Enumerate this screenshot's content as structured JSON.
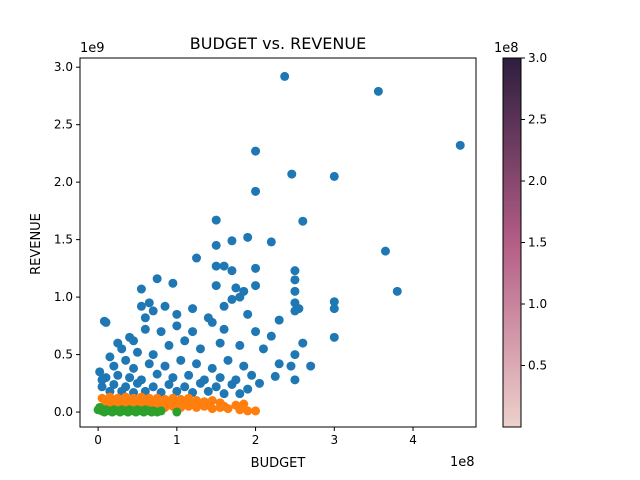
{
  "chart_data": {
    "type": "scatter",
    "title": "BUDGET vs. REVENUE",
    "xlabel": "BUDGET",
    "ylabel": "REVENUE",
    "x_scale_label": "1e8",
    "y_scale_label": "1e9",
    "x_unit": 100000000,
    "y_unit": 1000000000,
    "xlim": [
      -0.23,
      4.8
    ],
    "ylim": [
      -0.13,
      3.08
    ],
    "x_ticks": [
      0,
      1,
      2,
      3,
      4
    ],
    "y_ticks": [
      0.0,
      0.5,
      1.0,
      1.5,
      2.0,
      2.5,
      3.0
    ],
    "x_tick_labels": [
      "0",
      "1",
      "2",
      "3",
      "4"
    ],
    "y_tick_labels": [
      "0.0",
      "0.5",
      "1.0",
      "1.5",
      "2.0",
      "2.5",
      "3.0"
    ],
    "grid": false,
    "series": [
      {
        "color": "#1f77b4",
        "points": [
          [
            2.37,
            2.92
          ],
          [
            3.56,
            2.79
          ],
          [
            4.6,
            2.32
          ],
          [
            2.0,
            2.27
          ],
          [
            2.46,
            2.07
          ],
          [
            3.0,
            2.05
          ],
          [
            2.0,
            1.92
          ],
          [
            1.5,
            1.67
          ],
          [
            2.6,
            1.66
          ],
          [
            1.7,
            1.49
          ],
          [
            1.9,
            1.52
          ],
          [
            2.2,
            1.48
          ],
          [
            1.5,
            1.45
          ],
          [
            3.65,
            1.4
          ],
          [
            1.25,
            1.34
          ],
          [
            1.5,
            1.27
          ],
          [
            1.6,
            1.27
          ],
          [
            1.7,
            1.23
          ],
          [
            2.0,
            1.25
          ],
          [
            2.5,
            1.23
          ],
          [
            0.75,
            1.16
          ],
          [
            0.95,
            1.12
          ],
          [
            0.55,
            1.07
          ],
          [
            3.8,
            1.05
          ],
          [
            2.0,
            1.1
          ],
          [
            1.5,
            1.1
          ],
          [
            1.75,
            1.08
          ],
          [
            1.85,
            1.05
          ],
          [
            2.5,
            1.15
          ],
          [
            2.5,
            1.05
          ],
          [
            3.0,
            0.96
          ],
          [
            0.08,
            0.79
          ],
          [
            0.1,
            0.78
          ],
          [
            2.5,
            0.95
          ],
          [
            2.55,
            0.9
          ],
          [
            3.0,
            0.9
          ],
          [
            2.5,
            0.88
          ],
          [
            2.3,
            0.8
          ],
          [
            3.0,
            0.65
          ],
          [
            2.2,
            0.66
          ],
          [
            2.6,
            0.6
          ],
          [
            2.1,
            0.55
          ],
          [
            2.5,
            0.5
          ],
          [
            2.7,
            0.4
          ],
          [
            2.5,
            0.28
          ],
          [
            2.25,
            0.31
          ],
          [
            2.45,
            0.4
          ],
          [
            2.3,
            0.42
          ],
          [
            0.4,
            0.65
          ],
          [
            0.6,
            0.72
          ],
          [
            0.8,
            0.7
          ],
          [
            1.0,
            0.75
          ],
          [
            1.2,
            0.7
          ],
          [
            1.45,
            0.78
          ],
          [
            1.6,
            0.72
          ],
          [
            1.9,
            0.85
          ],
          [
            0.3,
            0.55
          ],
          [
            0.5,
            0.52
          ],
          [
            0.7,
            0.5
          ],
          [
            0.9,
            0.58
          ],
          [
            1.1,
            0.62
          ],
          [
            1.3,
            0.55
          ],
          [
            1.55,
            0.6
          ],
          [
            1.8,
            0.58
          ],
          [
            2.0,
            0.7
          ],
          [
            0.2,
            0.4
          ],
          [
            0.35,
            0.45
          ],
          [
            0.45,
            0.38
          ],
          [
            0.65,
            0.42
          ],
          [
            0.85,
            0.4
          ],
          [
            1.05,
            0.45
          ],
          [
            1.25,
            0.42
          ],
          [
            1.45,
            0.38
          ],
          [
            1.65,
            0.45
          ],
          [
            1.85,
            0.4
          ],
          [
            0.1,
            0.3
          ],
          [
            0.25,
            0.32
          ],
          [
            0.4,
            0.3
          ],
          [
            0.55,
            0.28
          ],
          [
            0.75,
            0.33
          ],
          [
            0.95,
            0.3
          ],
          [
            1.15,
            0.32
          ],
          [
            1.35,
            0.28
          ],
          [
            1.55,
            0.3
          ],
          [
            1.75,
            0.28
          ],
          [
            1.95,
            0.32
          ],
          [
            0.05,
            0.22
          ],
          [
            0.2,
            0.24
          ],
          [
            0.35,
            0.22
          ],
          [
            0.5,
            0.25
          ],
          [
            0.7,
            0.22
          ],
          [
            0.9,
            0.24
          ],
          [
            1.1,
            0.22
          ],
          [
            1.3,
            0.25
          ],
          [
            1.5,
            0.22
          ],
          [
            1.7,
            0.24
          ],
          [
            1.9,
            0.2
          ],
          [
            2.05,
            0.25
          ],
          [
            0.15,
            0.18
          ],
          [
            0.3,
            0.18
          ],
          [
            0.45,
            0.17
          ],
          [
            0.6,
            0.18
          ],
          [
            0.8,
            0.17
          ],
          [
            1.0,
            0.18
          ],
          [
            1.2,
            0.17
          ],
          [
            1.4,
            0.18
          ],
          [
            1.6,
            0.16
          ],
          [
            1.8,
            0.16
          ],
          [
            0.02,
            0.35
          ],
          [
            0.05,
            0.28
          ],
          [
            0.6,
            0.82
          ],
          [
            0.7,
            0.88
          ],
          [
            0.85,
            0.92
          ],
          [
            1.0,
            0.85
          ],
          [
            1.2,
            0.9
          ],
          [
            1.4,
            0.82
          ],
          [
            1.6,
            0.92
          ],
          [
            1.7,
            0.98
          ],
          [
            1.8,
            1.0
          ],
          [
            0.25,
            0.6
          ],
          [
            0.45,
            0.62
          ],
          [
            0.15,
            0.48
          ],
          [
            0.55,
            0.92
          ],
          [
            0.65,
            0.95
          ]
        ]
      },
      {
        "color": "#ff7f0e",
        "points": [
          [
            0.05,
            0.12
          ],
          [
            0.15,
            0.13
          ],
          [
            0.25,
            0.12
          ],
          [
            0.35,
            0.13
          ],
          [
            0.45,
            0.12
          ],
          [
            0.55,
            0.13
          ],
          [
            0.65,
            0.12
          ],
          [
            0.75,
            0.12
          ],
          [
            0.85,
            0.11
          ],
          [
            0.95,
            0.12
          ],
          [
            1.05,
            0.11
          ],
          [
            1.15,
            0.12
          ],
          [
            1.25,
            0.1
          ],
          [
            1.35,
            0.09
          ],
          [
            1.45,
            0.1
          ],
          [
            1.55,
            0.08
          ],
          [
            0.1,
            0.08
          ],
          [
            0.2,
            0.09
          ],
          [
            0.3,
            0.08
          ],
          [
            0.4,
            0.09
          ],
          [
            0.5,
            0.08
          ],
          [
            0.6,
            0.09
          ],
          [
            0.7,
            0.08
          ],
          [
            0.8,
            0.09
          ],
          [
            0.9,
            0.08
          ],
          [
            1.0,
            0.09
          ],
          [
            1.1,
            0.08
          ],
          [
            1.2,
            0.07
          ],
          [
            1.3,
            0.07
          ],
          [
            0.05,
            0.04
          ],
          [
            0.15,
            0.05
          ],
          [
            0.25,
            0.04
          ],
          [
            0.35,
            0.05
          ],
          [
            0.45,
            0.04
          ],
          [
            0.55,
            0.05
          ],
          [
            0.65,
            0.04
          ],
          [
            0.75,
            0.05
          ],
          [
            0.85,
            0.04
          ],
          [
            0.95,
            0.05
          ],
          [
            1.05,
            0.04
          ],
          [
            1.15,
            0.05
          ],
          [
            1.25,
            0.04
          ],
          [
            1.35,
            0.05
          ],
          [
            1.45,
            0.03
          ],
          [
            1.55,
            0.04
          ],
          [
            1.65,
            0.03
          ],
          [
            1.75,
            0.06
          ],
          [
            1.8,
            0.02
          ],
          [
            1.9,
            0.01
          ],
          [
            2.0,
            0.01
          ],
          [
            1.85,
            0.07
          ],
          [
            1.6,
            0.05
          ],
          [
            1.4,
            0.06
          ]
        ]
      },
      {
        "color": "#2ca02c",
        "points": [
          [
            0.0,
            0.02
          ],
          [
            0.05,
            0.01
          ],
          [
            0.1,
            0.02
          ],
          [
            0.15,
            0.01
          ],
          [
            0.2,
            0.02
          ],
          [
            0.25,
            0.01
          ],
          [
            0.3,
            0.02
          ],
          [
            0.35,
            0.01
          ],
          [
            0.4,
            0.02
          ],
          [
            0.45,
            0.01
          ],
          [
            0.5,
            0.02
          ],
          [
            0.55,
            0.01
          ],
          [
            0.6,
            0.02
          ],
          [
            0.65,
            0.01
          ],
          [
            0.7,
            0.01
          ],
          [
            0.75,
            0.0
          ],
          [
            0.8,
            0.01
          ],
          [
            0.02,
            0.04
          ],
          [
            0.08,
            0.0
          ],
          [
            0.18,
            0.0
          ],
          [
            0.28,
            0.0
          ],
          [
            0.38,
            0.0
          ],
          [
            0.48,
            0.0
          ],
          [
            0.58,
            0.0
          ],
          [
            0.68,
            0.0
          ],
          [
            1.0,
            0.0
          ]
        ]
      }
    ],
    "colorbar": {
      "min": 0.0,
      "max": 3.0,
      "scale_label": "1e8",
      "ticks": [
        0.5,
        1.0,
        1.5,
        2.0,
        2.5,
        3.0
      ],
      "tick_labels": [
        "0.5",
        "1.0",
        "1.5",
        "2.0",
        "2.5",
        "3.0"
      ],
      "color_low": "#edd1cb",
      "color_mid": "#b45d86",
      "color_high": "#2d1e3e"
    }
  }
}
